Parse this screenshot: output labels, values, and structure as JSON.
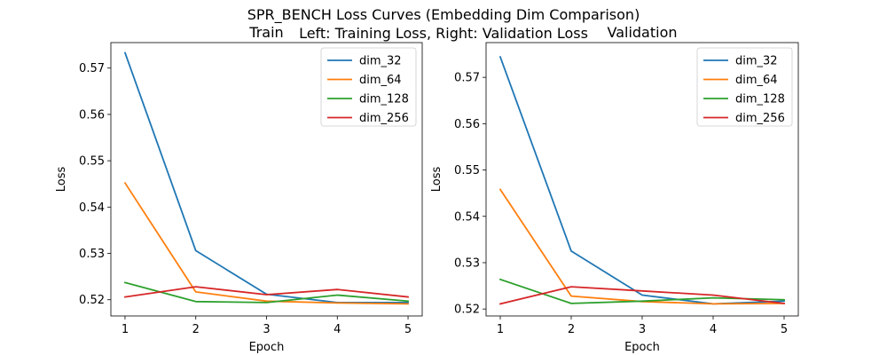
{
  "figure": {
    "title": "SPR_BENCH Loss Curves (Embedding Dim Comparison)",
    "subtitle": "Left: Training Loss, Right: Validation Loss"
  },
  "chart_data": [
    {
      "type": "line",
      "title": "Train",
      "xlabel": "Epoch",
      "ylabel": "Loss",
      "x": [
        1,
        2,
        3,
        4,
        5
      ],
      "xticks": [
        "1",
        "2",
        "3",
        "4",
        "5"
      ],
      "ylim": [
        0.5165,
        0.5755
      ],
      "yticks": [
        "0.52",
        "0.53",
        "0.54",
        "0.55",
        "0.56",
        "0.57"
      ],
      "grid": false,
      "legend_position": "top-right",
      "series": [
        {
          "name": "dim_32",
          "color": "#1f77b4",
          "values": [
            0.5733,
            0.5306,
            0.5212,
            0.5194,
            0.5194
          ]
        },
        {
          "name": "dim_64",
          "color": "#ff7f0e",
          "values": [
            0.5452,
            0.5217,
            0.5197,
            0.5193,
            0.5191
          ]
        },
        {
          "name": "dim_128",
          "color": "#2ca02c",
          "values": [
            0.5237,
            0.5196,
            0.5194,
            0.521,
            0.5197
          ]
        },
        {
          "name": "dim_256",
          "color": "#d62728",
          "values": [
            0.5206,
            0.5228,
            0.5211,
            0.5222,
            0.5206
          ]
        }
      ]
    },
    {
      "type": "line",
      "title": "Validation",
      "xlabel": "Epoch",
      "ylabel": "Loss",
      "x": [
        1,
        2,
        3,
        4,
        5
      ],
      "xticks": [
        "1",
        "2",
        "3",
        "4",
        "5"
      ],
      "ylim": [
        0.5185,
        0.5775
      ],
      "yticks": [
        "0.52",
        "0.53",
        "0.54",
        "0.55",
        "0.56",
        "0.57"
      ],
      "grid": false,
      "legend_position": "top-right",
      "series": [
        {
          "name": "dim_32",
          "color": "#1f77b4",
          "values": [
            0.5744,
            0.5325,
            0.523,
            0.5211,
            0.5217
          ]
        },
        {
          "name": "dim_64",
          "color": "#ff7f0e",
          "values": [
            0.5458,
            0.5228,
            0.5216,
            0.5211,
            0.5212
          ]
        },
        {
          "name": "dim_128",
          "color": "#2ca02c",
          "values": [
            0.5264,
            0.5212,
            0.5217,
            0.5224,
            0.522
          ]
        },
        {
          "name": "dim_256",
          "color": "#d62728",
          "values": [
            0.5211,
            0.5248,
            0.5239,
            0.523,
            0.5212
          ]
        }
      ]
    }
  ]
}
